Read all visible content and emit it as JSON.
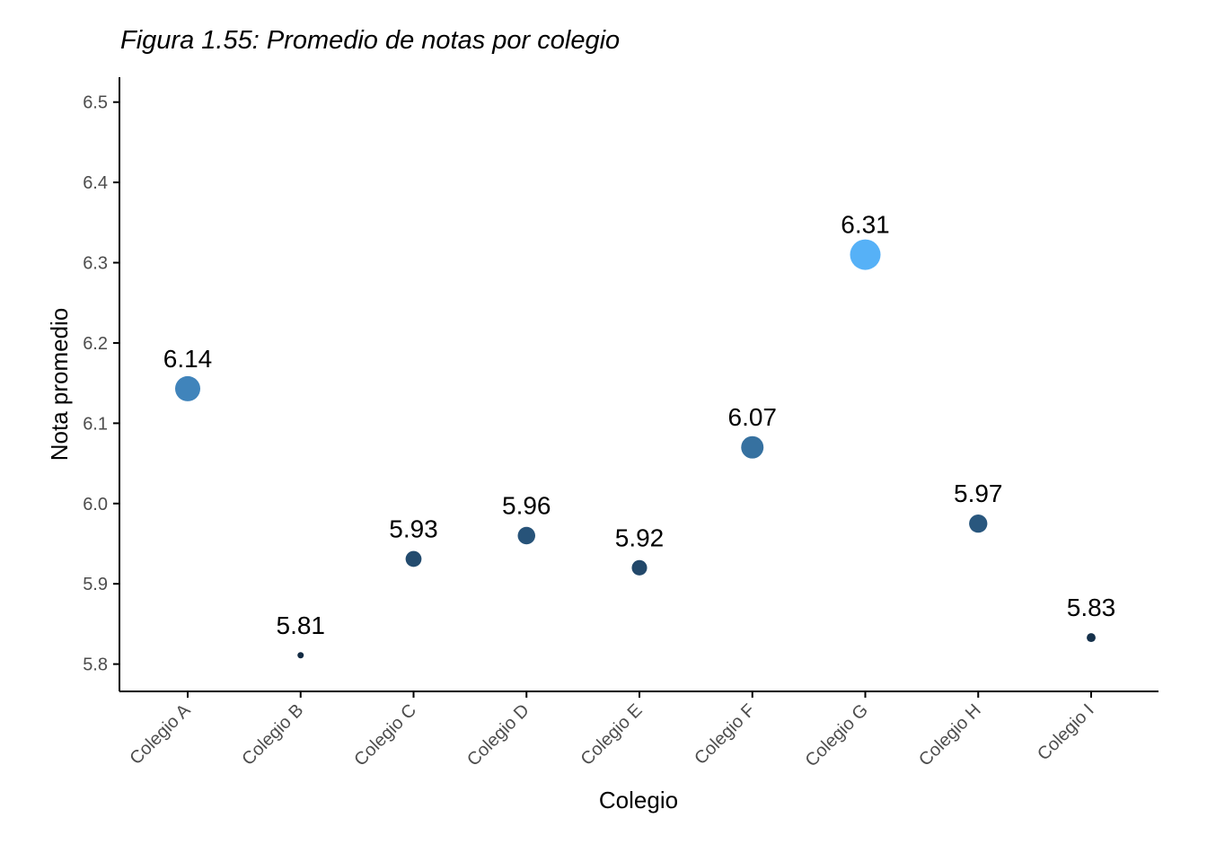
{
  "chart_data": {
    "type": "scatter",
    "title": "Figura 1.55: Promedio de notas por colegio",
    "xlabel": "Colegio",
    "ylabel": "Nota promedio",
    "categories": [
      "Colegio A",
      "Colegio B",
      "Colegio C",
      "Colegio D",
      "Colegio E",
      "Colegio F",
      "Colegio G",
      "Colegio H",
      "Colegio I"
    ],
    "values": [
      6.143,
      5.811,
      5.931,
      5.96,
      5.92,
      6.07,
      6.31,
      5.975,
      5.833
    ],
    "data_labels": [
      "6.14",
      "5.81",
      "5.93",
      "5.96",
      "5.92",
      "6.07",
      "6.31",
      "5.97",
      "5.83"
    ],
    "ylim": [
      5.766,
      6.531
    ],
    "yticks": [
      5.8,
      5.9,
      6.0,
      6.1,
      6.2,
      6.3,
      6.4,
      6.5
    ],
    "ytick_labels": [
      "5.8",
      "5.9",
      "6.0",
      "6.1",
      "6.2",
      "6.3",
      "6.4",
      "6.5"
    ],
    "size_and_color_by": "value",
    "color_low": "#132b43",
    "color_high": "#56b1f7",
    "grid": false,
    "legend": "none"
  }
}
